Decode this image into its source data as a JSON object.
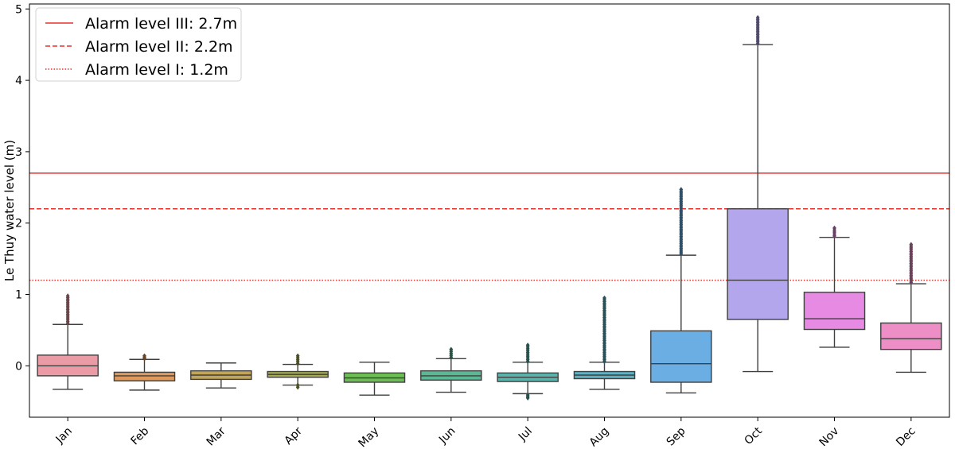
{
  "chart_data": {
    "type": "box",
    "ylabel": "Le Thuy water level (m)",
    "xlabel": "",
    "ylim": [
      -0.72,
      5.07
    ],
    "yticks": [
      0,
      1,
      2,
      3,
      4,
      5
    ],
    "grid": false,
    "legend_position": "top-left",
    "alarm_lines": [
      {
        "label": "Alarm level III: 2.7m",
        "value": 2.7,
        "style": "solid",
        "color": "#e8312b"
      },
      {
        "label": "Alarm level II: 2.2m",
        "value": 2.2,
        "style": "dashed",
        "color": "#e8312b"
      },
      {
        "label": "Alarm level I: 1.2m",
        "value": 1.2,
        "style": "dotted",
        "color": "#e8312b"
      }
    ],
    "categories": [
      "Jan",
      "Feb",
      "Mar",
      "Apr",
      "May",
      "Jun",
      "Jul",
      "Aug",
      "Sep",
      "Oct",
      "Nov",
      "Dec"
    ],
    "boxes": [
      {
        "month": "Jan",
        "color": "#eb9ba5",
        "whisker_low": -0.33,
        "q1": -0.14,
        "median": 0.0,
        "q3": 0.15,
        "whisker_high": 0.58,
        "outliers_low": [],
        "outliers_high": [
          0.6,
          0.98
        ]
      },
      {
        "month": "Feb",
        "color": "#e0995b",
        "whisker_low": -0.34,
        "q1": -0.21,
        "median": -0.14,
        "q3": -0.09,
        "whisker_high": 0.09,
        "outliers_low": [],
        "outliers_high": [
          0.1,
          0.14
        ]
      },
      {
        "month": "Mar",
        "color": "#c2a557",
        "whisker_low": -0.31,
        "q1": -0.19,
        "median": -0.13,
        "q3": -0.07,
        "whisker_high": 0.04,
        "outliers_low": [],
        "outliers_high": []
      },
      {
        "month": "Apr",
        "color": "#a8ae4f",
        "whisker_low": -0.27,
        "q1": -0.16,
        "median": -0.12,
        "q3": -0.08,
        "whisker_high": 0.02,
        "outliers_low": [
          -0.3,
          -0.27
        ],
        "outliers_high": [
          0.03,
          0.14
        ]
      },
      {
        "month": "May",
        "color": "#6dbd55",
        "whisker_low": -0.41,
        "q1": -0.23,
        "median": -0.17,
        "q3": -0.1,
        "whisker_high": 0.05,
        "outliers_low": [],
        "outliers_high": []
      },
      {
        "month": "Jun",
        "color": "#5ab895",
        "whisker_low": -0.37,
        "q1": -0.2,
        "median": -0.14,
        "q3": -0.07,
        "whisker_high": 0.1,
        "outliers_low": [],
        "outliers_high": [
          0.12,
          0.23
        ]
      },
      {
        "month": "Jul",
        "color": "#5bb3ac",
        "whisker_low": -0.39,
        "q1": -0.22,
        "median": -0.16,
        "q3": -0.1,
        "whisker_high": 0.05,
        "outliers_low": [
          -0.41,
          -0.45
        ],
        "outliers_high": [
          0.06,
          0.29
        ]
      },
      {
        "month": "Aug",
        "color": "#5eb1c2",
        "whisker_low": -0.33,
        "q1": -0.18,
        "median": -0.13,
        "q3": -0.08,
        "whisker_high": 0.05,
        "outliers_low": [],
        "outliers_high": [
          0.06,
          0.95
        ]
      },
      {
        "month": "Sep",
        "color": "#6aaee3",
        "whisker_low": -0.38,
        "q1": -0.23,
        "median": 0.03,
        "q3": 0.49,
        "whisker_high": 1.55,
        "outliers_low": [],
        "outliers_high": [
          1.57,
          2.3,
          2.37,
          2.47
        ]
      },
      {
        "month": "Oct",
        "color": "#b3a6ec",
        "whisker_low": -0.08,
        "q1": 0.65,
        "median": 1.2,
        "q3": 2.2,
        "whisker_high": 4.5,
        "outliers_low": [],
        "outliers_high": [
          4.52,
          4.88
        ]
      },
      {
        "month": "Nov",
        "color": "#e78ae3",
        "whisker_low": 0.26,
        "q1": 0.51,
        "median": 0.66,
        "q3": 1.03,
        "whisker_high": 1.8,
        "outliers_low": [],
        "outliers_high": [
          1.82,
          1.93
        ]
      },
      {
        "month": "Dec",
        "color": "#ed8fc6",
        "whisker_low": -0.09,
        "q1": 0.23,
        "median": 0.38,
        "q3": 0.6,
        "whisker_high": 1.15,
        "outliers_low": [],
        "outliers_high": [
          1.17,
          1.7
        ]
      }
    ]
  }
}
